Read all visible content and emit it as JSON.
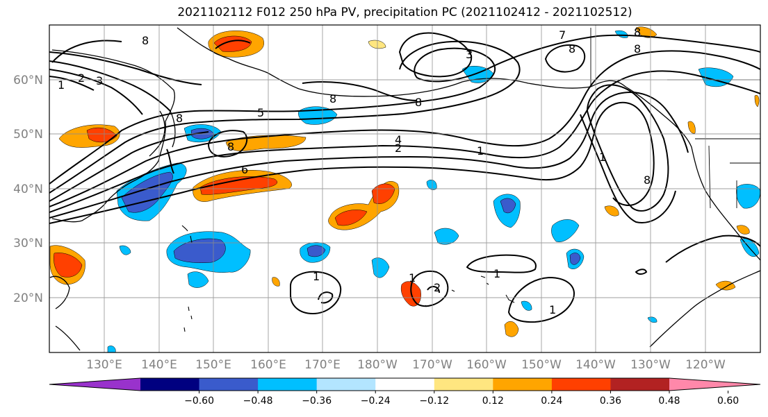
{
  "title": "2021102112 F012 250 hPa PV, precipitation PC (2021102412 - 2021102512)",
  "map": {
    "lat_labels": [
      "60°N",
      "50°N",
      "40°N",
      "30°N",
      "20°N"
    ],
    "lon_labels": [
      "130°E",
      "140°E",
      "150°E",
      "160°E",
      "170°E",
      "180°W",
      "170°W",
      "160°W",
      "150°W",
      "140°W",
      "130°W",
      "120°W"
    ],
    "contour_labels": [
      "8",
      "3",
      "2",
      "1",
      "8",
      "5",
      "8",
      "8",
      "6",
      "4",
      "2",
      "1",
      "3",
      "8",
      "8",
      "7",
      "8",
      "8",
      "1",
      "8",
      "1",
      "1",
      "2",
      "1",
      "1"
    ]
  },
  "colorbar": {
    "ticks": [
      "−0.60",
      "−0.48",
      "−0.36",
      "−0.24",
      "−0.12",
      "0.12",
      "0.24",
      "0.36",
      "0.48",
      "0.60"
    ],
    "colors": [
      "#9932cc",
      "#000080",
      "#3a5bcc",
      "#00bfff",
      "#b3e5ff",
      "#ffffff",
      "#ffe680",
      "#ffa500",
      "#ff4000",
      "#b22222",
      "#ff88aa"
    ]
  }
}
